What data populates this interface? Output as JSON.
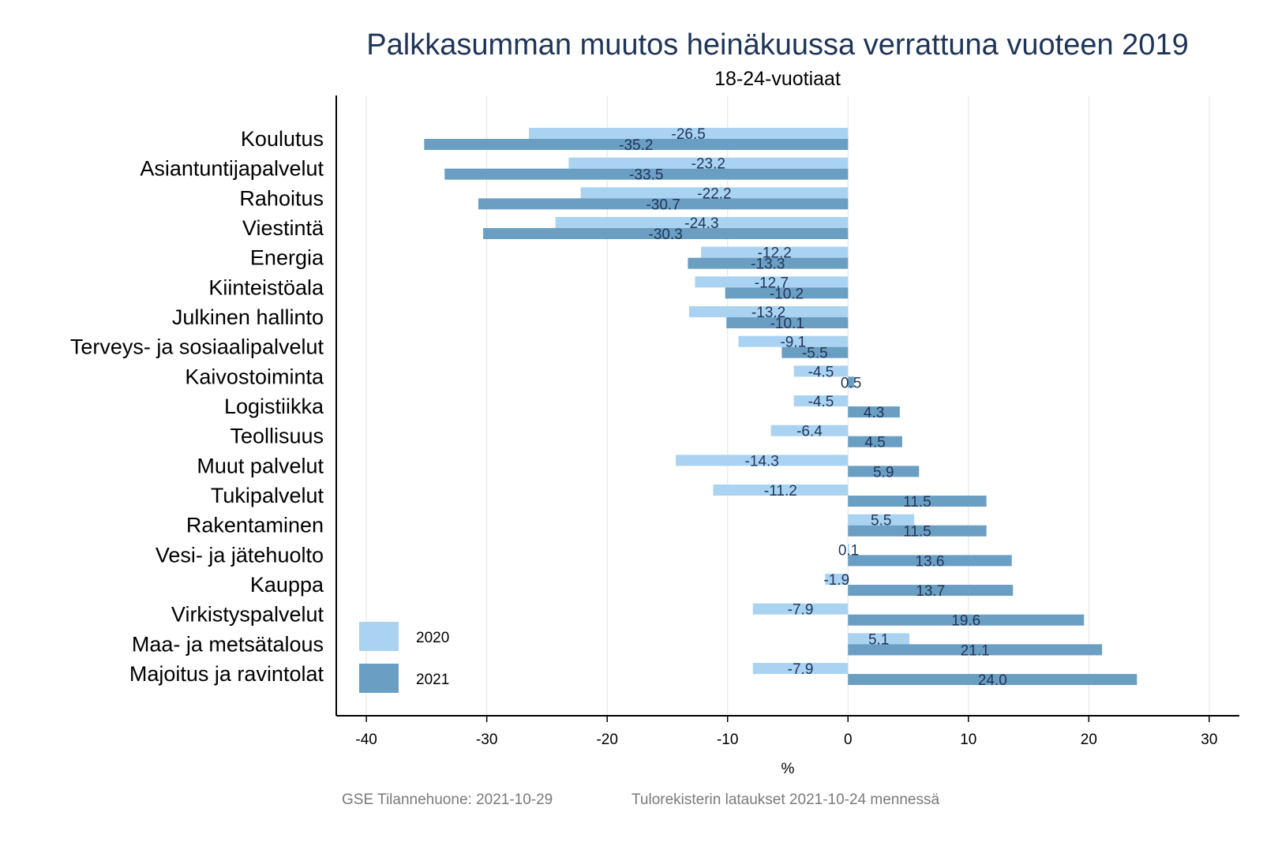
{
  "chart_data": {
    "type": "bar",
    "orientation": "horizontal",
    "title": "Palkkasumman muutos heinäkuussa verrattuna vuoteen 2019",
    "subtitle": "18-24-vuotiaat",
    "xlabel": "%",
    "xlim": [
      -42.5,
      32.5
    ],
    "xticks": [
      -40,
      -30,
      -20,
      -10,
      0,
      10,
      20,
      30
    ],
    "grid": true,
    "legend_position": "bottom-left",
    "categories": [
      "Koulutus",
      "Asiantuntijapalvelut",
      "Rahoitus",
      "Viestintä",
      "Energia",
      "Kiinteistöala",
      "Julkinen hallinto",
      "Terveys- ja sosiaalipalvelut",
      "Kaivostoiminta",
      "Logistiikka",
      "Teollisuus",
      "Muut palvelut",
      "Tukipalvelut",
      "Rakentaminen",
      "Vesi- ja jätehuolto",
      "Kauppa",
      "Virkistyspalvelut",
      "Maa- ja metsätalous",
      "Majoitus ja ravintolat"
    ],
    "series": [
      {
        "name": "2020",
        "color": "#a9d3f1",
        "values": [
          -26.5,
          -23.2,
          -22.2,
          -24.3,
          -12.2,
          -12.7,
          -13.2,
          -9.1,
          -4.5,
          -4.5,
          -6.4,
          -14.3,
          -11.2,
          5.5,
          0.1,
          -1.9,
          -7.9,
          5.1,
          -7.9
        ],
        "labels": [
          "-26.5",
          "-23.2",
          "-22.2",
          "-24.3",
          "-12.2",
          "-12.7",
          "-13.2",
          "-9.1",
          "-4.5",
          "-4.5",
          "-6.4",
          "-14.3",
          "-11.2",
          "5.5",
          "0.1",
          "-1.9",
          "-7.9",
          "5.1",
          "-7.9"
        ]
      },
      {
        "name": "2021",
        "color": "#6a9ec3",
        "values": [
          -35.2,
          -33.5,
          -30.7,
          -30.3,
          -13.3,
          -10.2,
          -10.1,
          -5.5,
          0.5,
          4.3,
          4.5,
          5.9,
          11.5,
          11.5,
          13.6,
          13.7,
          19.6,
          21.1,
          24.0
        ],
        "labels": [
          "-35.2",
          "-33.5",
          "-30.7",
          "-30.3",
          "-13.3",
          "-10.2",
          "-10.1",
          "-5.5",
          "0.5",
          "4.3",
          "4.5",
          "5.9",
          "11.5",
          "11.5",
          "13.6",
          "13.7",
          "19.6",
          "21.1",
          "24.0"
        ]
      }
    ]
  },
  "footer": {
    "source": "GSE Tilannehuone: 2021-10-29",
    "note": "Tulorekisterin lataukset 2021-10-24 mennessä"
  }
}
